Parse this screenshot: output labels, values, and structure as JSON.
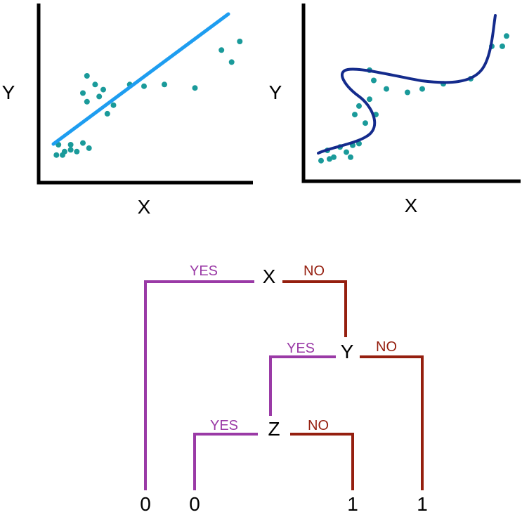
{
  "colors": {
    "axis": "#000000",
    "dots": "#1a9a9a",
    "linear_fit": "#1e9df0",
    "curve_fit": "#142b8c",
    "yes_branch": "#9a3aa6",
    "no_branch": "#951f0f",
    "text": "#000000"
  },
  "plots": {
    "left": {
      "ylabel": "Y",
      "xlabel": "X"
    },
    "right": {
      "ylabel": "Y",
      "xlabel": "X"
    }
  },
  "tree": {
    "nodes": {
      "x": "X",
      "y": "Y",
      "z": "Z"
    },
    "edges": {
      "x_yes": "YES",
      "x_no": "NO",
      "y_yes": "YES",
      "y_no": "NO",
      "z_yes": "YES",
      "z_no": "NO"
    },
    "leaves": [
      "0",
      "0",
      "1",
      "1"
    ]
  },
  "chart_data": [
    {
      "type": "scatter",
      "fit": "linear",
      "xlabel": "X",
      "ylabel": "Y",
      "points": [
        [
          0.08,
          0.2
        ],
        [
          0.11,
          0.16
        ],
        [
          0.14,
          0.2
        ],
        [
          0.17,
          0.16
        ],
        [
          0.2,
          0.21
        ],
        [
          0.23,
          0.18
        ],
        [
          0.07,
          0.14
        ],
        [
          0.1,
          0.14
        ],
        [
          0.14,
          0.17
        ],
        [
          0.2,
          0.5
        ],
        [
          0.22,
          0.45
        ],
        [
          0.26,
          0.55
        ],
        [
          0.28,
          0.48
        ],
        [
          0.3,
          0.52
        ],
        [
          0.22,
          0.6
        ],
        [
          0.32,
          0.38
        ],
        [
          0.35,
          0.43
        ],
        [
          0.43,
          0.55
        ],
        [
          0.5,
          0.54
        ],
        [
          0.6,
          0.55
        ],
        [
          0.75,
          0.53
        ],
        [
          0.88,
          0.75
        ],
        [
          0.93,
          0.68
        ],
        [
          0.97,
          0.8
        ]
      ],
      "line": [
        [
          0.05,
          0.2
        ],
        [
          0.98,
          0.95
        ]
      ]
    },
    {
      "type": "scatter",
      "fit": "curve",
      "xlabel": "X",
      "ylabel": "Y",
      "points": [
        [
          0.1,
          0.16
        ],
        [
          0.13,
          0.12
        ],
        [
          0.16,
          0.18
        ],
        [
          0.19,
          0.15
        ],
        [
          0.22,
          0.19
        ],
        [
          0.25,
          0.2
        ],
        [
          0.07,
          0.1
        ],
        [
          0.11,
          0.11
        ],
        [
          0.21,
          0.12
        ],
        [
          0.23,
          0.37
        ],
        [
          0.25,
          0.42
        ],
        [
          0.28,
          0.32
        ],
        [
          0.3,
          0.46
        ],
        [
          0.33,
          0.37
        ],
        [
          0.3,
          0.63
        ],
        [
          0.32,
          0.57
        ],
        [
          0.38,
          0.52
        ],
        [
          0.48,
          0.5
        ],
        [
          0.55,
          0.52
        ],
        [
          0.65,
          0.55
        ],
        [
          0.78,
          0.58
        ],
        [
          0.88,
          0.77
        ],
        [
          0.93,
          0.77
        ],
        [
          0.95,
          0.83
        ]
      ]
    }
  ]
}
